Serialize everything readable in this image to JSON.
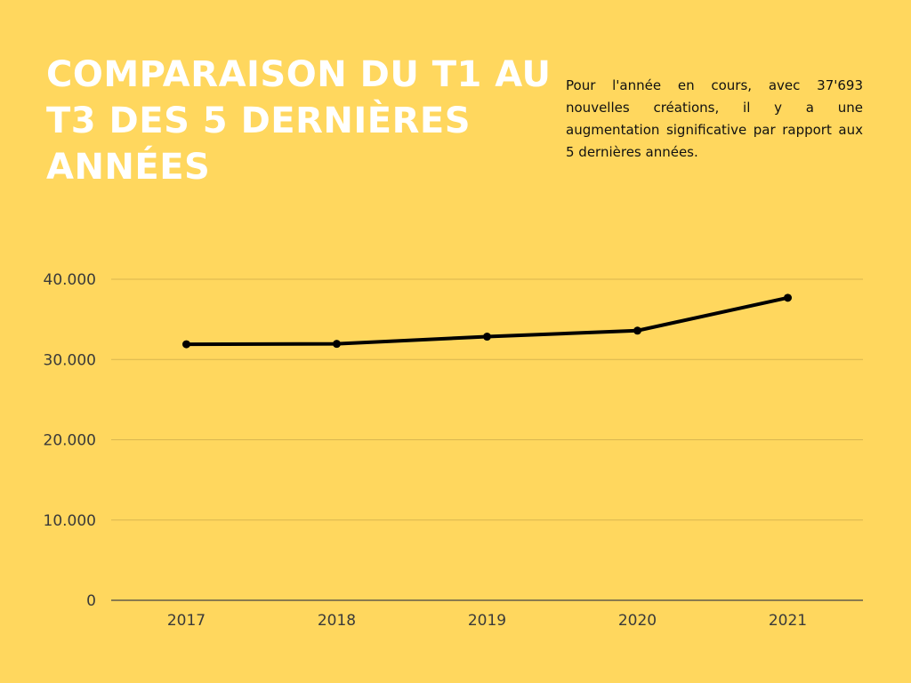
{
  "header": {
    "title": "COMPARAISON DU T1 AU T3 DES 5 DERNIÈRES ANNÉES",
    "description": "Pour l'année en cours, avec 37'693 nouvelles créations, il y a une augmentation significative par rapport aux 5 dernières années."
  },
  "colors": {
    "background": "#FFD75E",
    "title": "#FFFFFF",
    "line": "#000000",
    "grid": "#D9B64F"
  },
  "chart_data": {
    "type": "line",
    "title": "COMPARAISON DU T1 AU T3 DES 5 DERNIÈRES ANNÉES",
    "xlabel": "",
    "ylabel": "",
    "categories": [
      "2017",
      "2018",
      "2019",
      "2020",
      "2021"
    ],
    "series": [
      {
        "values": [
          31900,
          31950,
          32850,
          33600,
          37693
        ]
      }
    ],
    "ylim": [
      0,
      40000
    ],
    "y_ticks": [
      0,
      10000,
      20000,
      30000,
      40000
    ],
    "y_tick_labels": [
      "0",
      "10.000",
      "20.000",
      "30.000",
      "40.000"
    ],
    "grid": true,
    "legend": "none"
  }
}
